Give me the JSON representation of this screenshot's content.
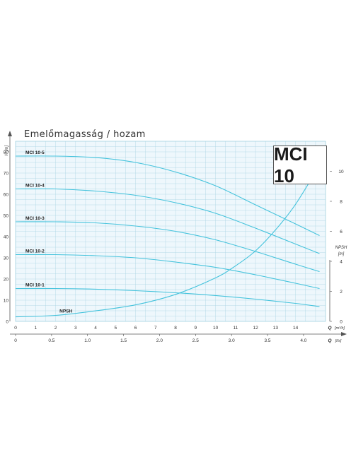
{
  "title": "Emelőmagasság / hozam",
  "model": "MCI 10",
  "colors": {
    "curve": "#45c3dc",
    "grid": "#a9d4e3",
    "plot_bg": "#eef7fc",
    "axis": "#555555"
  },
  "chart_data": {
    "type": "line",
    "title": "Emelőmagasság / hozam",
    "ylabel": "H [m]",
    "y2label": "NPSH [m]",
    "xlabel_top": "Q [m³/h]",
    "xlabel_bottom": "Q [l/s]",
    "xlim": [
      0,
      15.5
    ],
    "ylim": [
      0,
      85
    ],
    "y2lim": [
      0,
      12
    ],
    "y_ticks": [
      0,
      10,
      20,
      30,
      40,
      50,
      60,
      70,
      80
    ],
    "y2_ticks": [
      0,
      2,
      4,
      6,
      8,
      10
    ],
    "x_ticks_m3h": [
      0,
      1,
      2,
      3,
      4,
      5,
      6,
      7,
      8,
      9,
      10,
      11,
      12,
      13,
      14
    ],
    "x_ticks_ls": [
      "0",
      "0.5",
      "1.0",
      "1.5",
      "2.0",
      "2.5",
      "3.0",
      "3.5",
      "4.0"
    ],
    "grid": true,
    "series": [
      {
        "name": "MCI 10-5",
        "x": [
          0,
          2,
          4,
          6,
          8,
          10,
          12,
          14,
          15.2
        ],
        "values": [
          78,
          78,
          77.3,
          75,
          70.5,
          64,
          55,
          46,
          40.5
        ]
      },
      {
        "name": "MCI 10-4",
        "x": [
          0,
          2,
          4,
          6,
          8,
          10,
          12,
          14,
          15.2
        ],
        "values": [
          62.5,
          62.5,
          61.5,
          59.5,
          56,
          51,
          44,
          36.5,
          32
        ]
      },
      {
        "name": "MCI 10-3",
        "x": [
          0,
          2,
          4,
          6,
          8,
          10,
          12,
          14,
          15.2
        ],
        "values": [
          47,
          47,
          46.5,
          45,
          42.5,
          38.5,
          33,
          27,
          23.5
        ]
      },
      {
        "name": "MCI 10-2",
        "x": [
          0,
          2,
          4,
          6,
          8,
          10,
          12,
          14,
          15.2
        ],
        "values": [
          31.5,
          31.5,
          31,
          30,
          28,
          25.5,
          22,
          18,
          15.5
        ]
      },
      {
        "name": "MCI 10-1",
        "x": [
          0,
          2,
          4,
          6,
          8,
          10,
          12,
          14,
          15.2
        ],
        "values": [
          15.5,
          15.5,
          15.2,
          14.5,
          13.5,
          12.2,
          10.5,
          8.5,
          7
        ]
      },
      {
        "name": "NPSH",
        "axis": "right",
        "x": [
          0,
          2,
          4,
          6,
          8,
          10,
          11,
          12,
          13,
          14,
          15.2
        ],
        "values": [
          0.3,
          0.4,
          0.7,
          1.1,
          1.8,
          2.9,
          3.7,
          4.7,
          6.1,
          7.8,
          10.4
        ]
      }
    ]
  }
}
